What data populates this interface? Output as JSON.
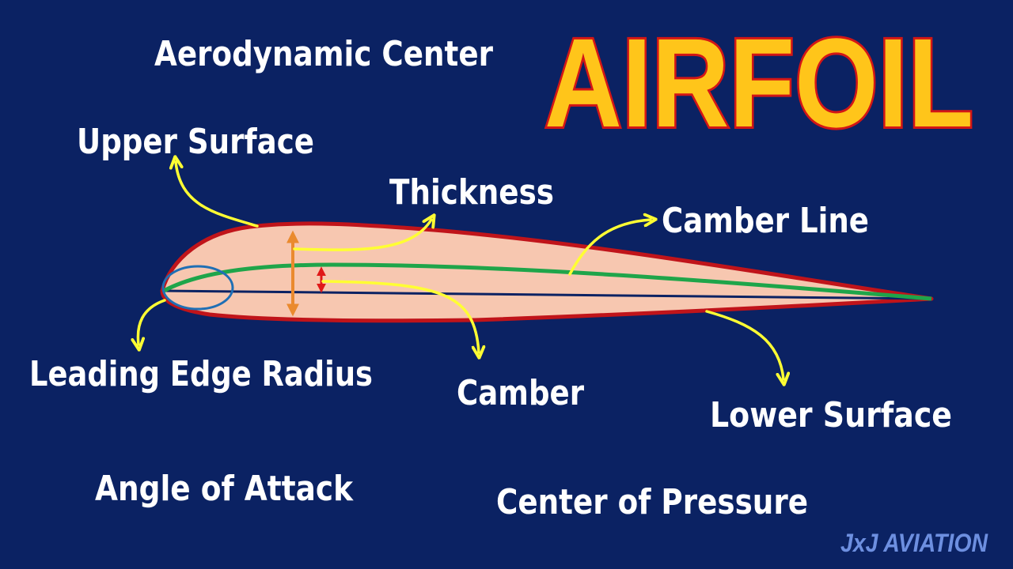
{
  "title": "AIRFOIL",
  "brand": "JxJ AVIATION",
  "labels": {
    "aerodynamic_center": "Aerodynamic Center",
    "upper_surface": "Upper Surface",
    "thickness": "Thickness",
    "camber_line": "Camber Line",
    "leading_edge_radius": "Leading Edge Radius",
    "camber": "Camber",
    "lower_surface": "Lower Surface",
    "angle_of_attack": "Angle of Attack",
    "center_of_pressure": "Center of Pressure"
  },
  "colors": {
    "background": "#0b2263",
    "title_fill": "#ffc51a",
    "title_stroke": "#d31616",
    "airfoil_fill": "#f7c7b0",
    "airfoil_outline": "#c0141a",
    "camber_line": "#1fa54a",
    "chord_line": "#0b2263",
    "leading_edge_circle": "#1f6fb5",
    "thickness_arrow": "#ea8a2e",
    "camber_arrow": "#e01818",
    "callout_arrow": "#ffff33",
    "brand": "#6d8fe0"
  }
}
